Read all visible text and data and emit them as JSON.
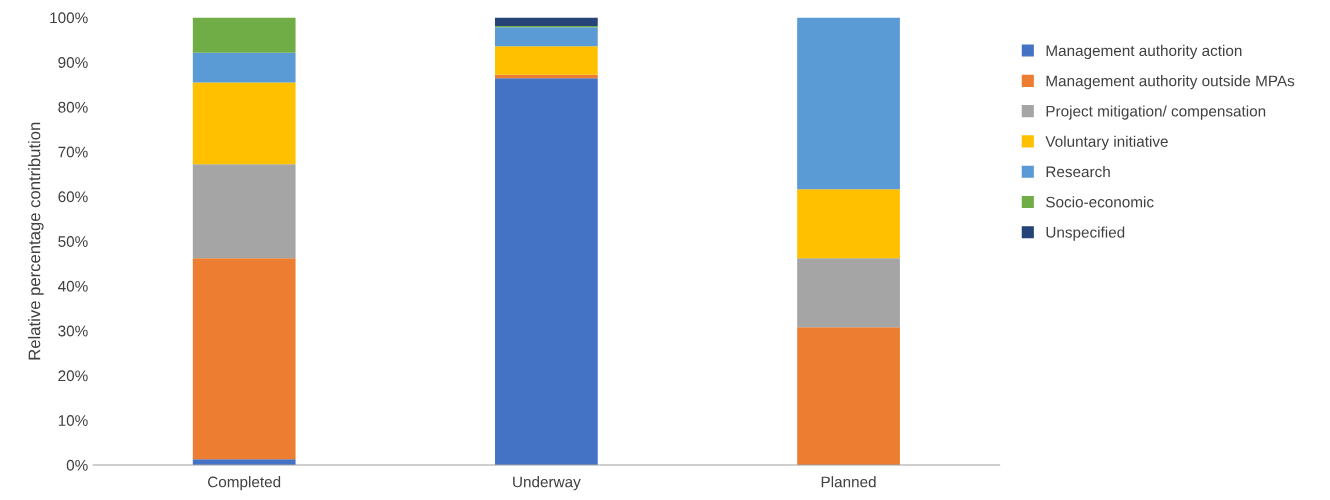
{
  "chart_data": {
    "type": "bar",
    "stacked": true,
    "ylabel": "Relative percentage contribution",
    "categories": [
      "Completed",
      "Underway",
      "Planned"
    ],
    "series": [
      {
        "name": "Management authority action",
        "color": "#4472c4",
        "values": [
          1.3,
          86.4,
          0
        ]
      },
      {
        "name": "Management authority outside MPAs",
        "color": "#ed7d31",
        "values": [
          44.9,
          0.8,
          30.8
        ]
      },
      {
        "name": "Project mitigation/ compensation",
        "color": "#a5a5a5",
        "values": [
          21.0,
          null,
          15.4
        ]
      },
      {
        "name": "Voluntary initiative",
        "color": "#ffc000",
        "values": [
          18.3,
          6.4,
          15.4
        ]
      },
      {
        "name": "Research",
        "color": "#5b9bd5",
        "values": [
          6.6,
          4.2,
          38.4
        ]
      },
      {
        "name": "Socio-economic",
        "color": "#70ad47",
        "values": [
          7.9,
          0.3,
          0
        ]
      },
      {
        "name": "Unspecified",
        "color": "#264478",
        "values": [
          0,
          1.9,
          0
        ]
      }
    ],
    "ylim": [
      0,
      100
    ],
    "yticks": [
      {
        "value": 0,
        "label": "0%"
      },
      {
        "value": 10,
        "label": "10%"
      },
      {
        "value": 20,
        "label": "20%"
      },
      {
        "value": 30,
        "label": "30%"
      },
      {
        "value": 40,
        "label": "40%"
      },
      {
        "value": 50,
        "label": "50%"
      },
      {
        "value": 60,
        "label": "60%"
      },
      {
        "value": 70,
        "label": "70%"
      },
      {
        "value": 80,
        "label": "80%"
      },
      {
        "value": 90,
        "label": "90%"
      },
      {
        "value": 100,
        "label": "100%"
      }
    ],
    "legend": "right",
    "grid": false
  }
}
